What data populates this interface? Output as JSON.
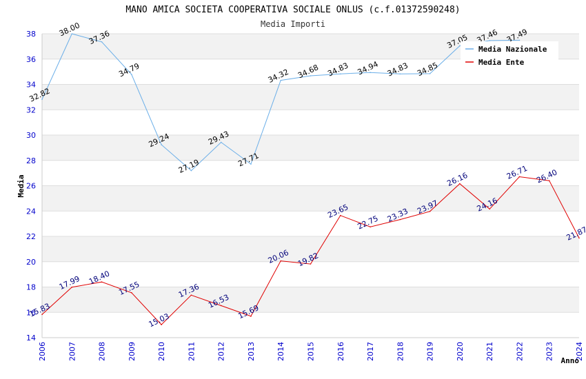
{
  "chart_data": {
    "type": "line",
    "title": "MANO AMICA SOCIETA COOPERATIVA SOCIALE ONLUS (c.f.01372590248)",
    "subtitle": "Media Importi",
    "xlabel": "Anno",
    "ylabel": "Media",
    "ylim": [
      14,
      38
    ],
    "yticks": [
      "14",
      "16",
      "18",
      "20",
      "22",
      "24",
      "26",
      "28",
      "30",
      "32",
      "34",
      "36",
      "38"
    ],
    "categories": [
      "2006",
      "2007",
      "2008",
      "2009",
      "2010",
      "2011",
      "2012",
      "2013",
      "2014",
      "2015",
      "2016",
      "2017",
      "2018",
      "2019",
      "2020",
      "2021",
      "2022",
      "2023",
      "2024"
    ],
    "series": [
      {
        "name": "Media Nazionale",
        "color": "#6aaee8",
        "values": [
          32.82,
          38.0,
          37.36,
          34.79,
          29.24,
          27.19,
          29.43,
          27.71,
          34.32,
          34.68,
          34.83,
          34.94,
          34.83,
          34.85,
          37.05,
          37.46,
          37.49,
          null,
          null
        ],
        "labels": [
          "32.82",
          "38.00",
          "37.36",
          "34.79",
          "29.24",
          "27.19",
          "29.43",
          "27.71",
          "34.32",
          "34.68",
          "34.83",
          "34.94",
          "34.83",
          "34.85",
          "37.05",
          "37.46",
          "37.49",
          "",
          ""
        ]
      },
      {
        "name": "Media Ente",
        "color": "#e00000",
        "values": [
          15.83,
          17.99,
          18.4,
          17.55,
          15.03,
          17.36,
          16.53,
          15.69,
          20.06,
          19.82,
          23.65,
          22.75,
          23.33,
          23.97,
          26.16,
          24.16,
          26.71,
          26.4,
          21.87
        ],
        "labels": [
          "15.83",
          "17.99",
          "18.40",
          "17.55",
          "15.03",
          "17.36",
          "16.53",
          "15.69",
          "20.06",
          "19.82",
          "23.65",
          "22.75",
          "23.33",
          "23.97",
          "26.16",
          "24.16",
          "26.71",
          "26.40",
          "21.87"
        ]
      }
    ],
    "legend": "top-right",
    "grid": true
  }
}
